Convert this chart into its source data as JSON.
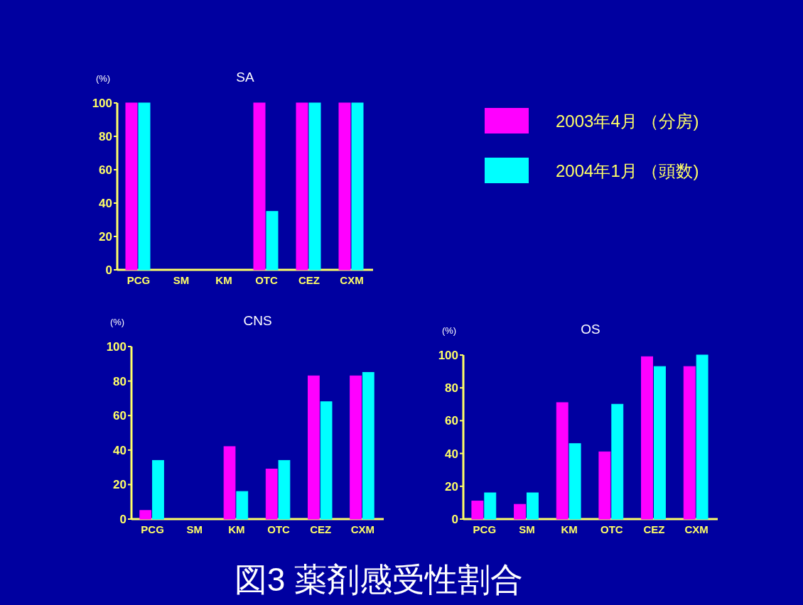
{
  "chart_data": [
    {
      "type": "bar",
      "title": "SA",
      "ylabel": "(%)",
      "categories": [
        "PCG",
        "SM",
        "KM",
        "OTC",
        "CEZ",
        "CXM"
      ],
      "series": [
        {
          "name": "2003年4月 （分房)",
          "color": "#ff00ff",
          "values": [
            100,
            0,
            0,
            100,
            100,
            100
          ]
        },
        {
          "name": "2004年1月 （頭数)",
          "color": "#00ffff",
          "values": [
            100,
            0,
            0,
            35,
            100,
            100
          ]
        }
      ],
      "ylim": [
        0,
        100
      ],
      "yticks": [
        0,
        20,
        40,
        60,
        80,
        100
      ],
      "legend": "right",
      "annotations": [
        "図3 薬剤感受性割合"
      ]
    },
    {
      "type": "bar",
      "title": "CNS",
      "ylabel": "(%)",
      "categories": [
        "PCG",
        "SM",
        "KM",
        "OTC",
        "CEZ",
        "CXM"
      ],
      "series": [
        {
          "color": "#ff00ff",
          "values": [
            5,
            0,
            42,
            29,
            83,
            83
          ]
        },
        {
          "color": "#00ffff",
          "values": [
            34,
            0,
            16,
            34,
            68,
            85
          ]
        }
      ],
      "ylim": [
        0,
        100
      ],
      "yticks": [
        0,
        20,
        40,
        60,
        80,
        100
      ]
    },
    {
      "type": "bar",
      "title": "OS",
      "ylabel": "(%)",
      "categories": [
        "PCG",
        "SM",
        "KM",
        "OTC",
        "CEZ",
        "CXM"
      ],
      "series": [
        {
          "color": "#ff00ff",
          "values": [
            11,
            9,
            71,
            41,
            99,
            93
          ]
        },
        {
          "color": "#00ffff",
          "values": [
            16,
            16,
            46,
            70,
            93,
            100
          ]
        }
      ],
      "ylim": [
        0,
        100
      ],
      "yticks": [
        0,
        20,
        40,
        60,
        80,
        100
      ]
    }
  ]
}
